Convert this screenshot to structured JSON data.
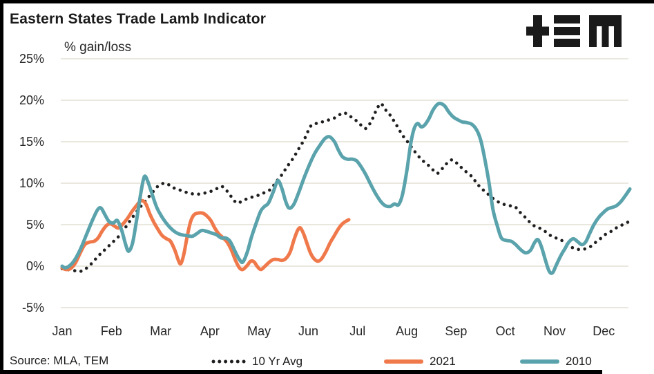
{
  "header": {
    "title": "Eastern States Trade Lamb Indicator",
    "logo_name": "TEM logo"
  },
  "footer": {
    "source": "Source: MLA, TEM"
  },
  "colors": {
    "ten_yr_avg": "#1f1f1f",
    "y2021": "#F0794B",
    "y2010": "#5AA3AC",
    "gridline": "#e9e7de",
    "frame_border": "#000000",
    "text": "#262626"
  },
  "chart_data": {
    "type": "line",
    "title": "Eastern States Trade Lamb Indicator",
    "y_axis_title": "% gain/loss",
    "x_unit": "months (0 = start of Jan, fractional = weeks within year)",
    "x_categories": [
      "Jan",
      "Feb",
      "Mar",
      "Apr",
      "May",
      "Jun",
      "Jul",
      "Aug",
      "Sep",
      "Oct",
      "Nov",
      "Dec"
    ],
    "y_ticks": [
      {
        "label": "25%",
        "value": 25
      },
      {
        "label": "20%",
        "value": 20
      },
      {
        "label": "15%",
        "value": 15
      },
      {
        "label": "10%",
        "value": 10
      },
      {
        "label": "5%",
        "value": 5
      },
      {
        "label": "0%",
        "value": 0
      },
      {
        "label": "-5%",
        "value": -5
      }
    ],
    "ylim": [
      -7.5,
      27
    ],
    "grid": "horizontal only",
    "legend_position": "bottom",
    "series": [
      {
        "name": "10 Yr Avg",
        "color": "#1f1f1f",
        "style": "dotted",
        "x": [
          0,
          0.21,
          0.39,
          0.56,
          0.73,
          0.87,
          1.01,
          1.15,
          1.29,
          1.43,
          1.57,
          1.71,
          1.85,
          1.96,
          2.1,
          2.24,
          2.38,
          2.52,
          2.67,
          2.81,
          2.95,
          3.06,
          3.16,
          3.25,
          3.37,
          3.48,
          3.56,
          3.67,
          3.79,
          3.9,
          4.01,
          4.12,
          4.24,
          4.35,
          4.46,
          4.57,
          4.69,
          4.8,
          4.91,
          5.05,
          5.16,
          5.29,
          5.4,
          5.51,
          5.62,
          5.72,
          5.84,
          5.96,
          6.07,
          6.17,
          6.28,
          6.38,
          6.47,
          6.56,
          6.66,
          6.77,
          6.91,
          7.04,
          7.15,
          7.29,
          7.43,
          7.55,
          7.63,
          7.74,
          7.85,
          7.94,
          8.05,
          8.18,
          8.32,
          8.42,
          8.51,
          8.61,
          8.72,
          8.84,
          8.95,
          9.07,
          9.19,
          9.28,
          9.37,
          9.45,
          9.55,
          9.65,
          9.76,
          9.87,
          9.97,
          10.08,
          10.2,
          10.31,
          10.42,
          10.53,
          10.63,
          10.74,
          10.84,
          10.95,
          11.05,
          11.15,
          11.25,
          11.35,
          11.45,
          11.53
        ],
        "y": [
          -0.3,
          -0.5,
          -0.6,
          0.1,
          1.2,
          2.0,
          2.8,
          3.6,
          4.7,
          5.9,
          7.0,
          8.0,
          9.0,
          9.7,
          10.0,
          9.5,
          9.2,
          8.9,
          8.7,
          8.7,
          8.9,
          9.1,
          9.4,
          9.6,
          8.9,
          8.0,
          7.6,
          7.9,
          8.2,
          8.4,
          8.6,
          8.9,
          9.3,
          10.2,
          11.0,
          12.0,
          13.0,
          14.1,
          15.2,
          16.9,
          17.2,
          17.4,
          17.6,
          17.8,
          18.2,
          18.5,
          18.1,
          17.6,
          17.0,
          16.6,
          17.5,
          18.8,
          19.6,
          18.9,
          18.2,
          17.2,
          15.8,
          14.8,
          13.9,
          12.9,
          12.2,
          11.5,
          11.2,
          11.9,
          12.6,
          12.8,
          12.2,
          11.5,
          10.8,
          10.0,
          9.4,
          8.9,
          8.3,
          7.8,
          7.5,
          7.3,
          7.2,
          6.6,
          6.1,
          5.6,
          5.0,
          4.7,
          4.4,
          3.9,
          3.5,
          3.3,
          2.9,
          2.4,
          2.1,
          2.0,
          2.1,
          2.4,
          2.9,
          3.4,
          3.9,
          4.2,
          4.6,
          4.9,
          5.2,
          5.4
        ]
      },
      {
        "name": "2021",
        "color": "#F0794B",
        "style": "solid",
        "x": [
          0,
          0.07,
          0.17,
          0.27,
          0.36,
          0.46,
          0.56,
          0.65,
          0.73,
          0.81,
          0.9,
          0.98,
          1.07,
          1.14,
          1.22,
          1.32,
          1.42,
          1.51,
          1.61,
          1.7,
          1.78,
          1.87,
          1.95,
          2.03,
          2.12,
          2.2,
          2.29,
          2.36,
          2.41,
          2.47,
          2.54,
          2.61,
          2.68,
          2.76,
          2.85,
          2.93,
          3.02,
          3.1,
          3.18,
          3.27,
          3.35,
          3.44,
          3.52,
          3.6,
          3.67,
          3.76,
          3.83,
          3.9,
          3.97,
          4.04,
          4.12,
          4.21,
          4.29,
          4.38,
          4.46,
          4.54,
          4.63,
          4.71,
          4.78,
          4.84,
          4.91,
          4.98,
          5.05,
          5.13,
          5.2,
          5.27,
          5.36,
          5.44,
          5.53,
          5.61,
          5.69,
          5.76,
          5.82
        ],
        "y": [
          -0.2,
          -0.4,
          -0.3,
          0.4,
          1.5,
          2.6,
          2.9,
          3.0,
          3.4,
          4.2,
          4.9,
          5.1,
          4.8,
          4.6,
          5.0,
          5.7,
          6.6,
          7.3,
          7.9,
          7.5,
          6.3,
          5.2,
          4.4,
          3.7,
          3.3,
          3.0,
          1.9,
          0.7,
          0.3,
          1.4,
          3.6,
          5.4,
          6.2,
          6.4,
          6.4,
          6.1,
          5.5,
          4.6,
          3.9,
          3.4,
          2.9,
          1.9,
          0.7,
          -0.2,
          -0.4,
          0.1,
          0.6,
          0.5,
          -0.1,
          -0.4,
          0.0,
          0.5,
          0.8,
          0.8,
          0.7,
          0.9,
          1.7,
          3.2,
          4.3,
          4.6,
          3.8,
          2.6,
          1.5,
          0.8,
          0.6,
          0.9,
          1.8,
          2.8,
          3.7,
          4.5,
          5.1,
          5.4,
          5.6
        ]
      },
      {
        "name": "2010",
        "color": "#5AA3AC",
        "style": "solid",
        "x": [
          0,
          0.07,
          0.18,
          0.28,
          0.39,
          0.5,
          0.62,
          0.72,
          0.79,
          0.87,
          0.95,
          1.04,
          1.12,
          1.21,
          1.29,
          1.35,
          1.43,
          1.51,
          1.6,
          1.67,
          1.74,
          1.82,
          1.92,
          2.02,
          2.1,
          2.2,
          2.3,
          2.41,
          2.52,
          2.64,
          2.73,
          2.83,
          2.93,
          3.03,
          3.13,
          3.23,
          3.32,
          3.41,
          3.51,
          3.6,
          3.67,
          3.76,
          3.84,
          3.93,
          4.03,
          4.11,
          4.19,
          4.29,
          4.38,
          4.46,
          4.54,
          4.61,
          4.7,
          4.8,
          4.91,
          5.02,
          5.13,
          5.25,
          5.34,
          5.43,
          5.53,
          5.61,
          5.69,
          5.79,
          5.89,
          5.98,
          6.07,
          6.17,
          6.27,
          6.37,
          6.47,
          6.56,
          6.66,
          6.75,
          6.83,
          6.91,
          7.0,
          7.08,
          7.15,
          7.22,
          7.29,
          7.36,
          7.45,
          7.53,
          7.62,
          7.69,
          7.77,
          7.85,
          7.94,
          8.02,
          8.12,
          8.22,
          8.32,
          8.42,
          8.5,
          8.58,
          8.67,
          8.75,
          8.84,
          8.92,
          9.02,
          9.12,
          9.21,
          9.31,
          9.41,
          9.51,
          9.59,
          9.66,
          9.73,
          9.82,
          9.89,
          9.96,
          10.04,
          10.13,
          10.21,
          10.29,
          10.38,
          10.46,
          10.55,
          10.63,
          10.71,
          10.8,
          10.9,
          10.98,
          11.08,
          11.18,
          11.26,
          11.35,
          11.45,
          11.53
        ],
        "y": [
          0.0,
          -0.2,
          0.2,
          1.0,
          2.3,
          3.9,
          5.6,
          6.8,
          7.0,
          6.2,
          5.4,
          5.2,
          5.5,
          4.3,
          2.6,
          1.8,
          2.8,
          5.5,
          8.9,
          10.8,
          10.2,
          8.8,
          7.1,
          6.0,
          5.3,
          4.6,
          4.1,
          3.8,
          3.7,
          3.6,
          3.9,
          4.3,
          4.2,
          4.0,
          3.8,
          3.4,
          3.4,
          3.0,
          1.8,
          0.8,
          0.5,
          1.7,
          3.4,
          5.0,
          6.6,
          7.2,
          7.6,
          9.0,
          10.3,
          9.4,
          7.8,
          7.0,
          7.4,
          8.8,
          10.6,
          12.2,
          13.6,
          14.7,
          15.4,
          15.6,
          15.0,
          14.0,
          13.2,
          12.9,
          12.9,
          12.7,
          12.0,
          11.0,
          9.8,
          8.7,
          7.8,
          7.3,
          7.2,
          7.5,
          7.4,
          8.6,
          11.5,
          14.8,
          16.6,
          17.2,
          16.8,
          17.0,
          17.8,
          18.8,
          19.5,
          19.6,
          19.3,
          18.6,
          18.0,
          17.7,
          17.4,
          17.3,
          17.1,
          16.4,
          15.2,
          13.0,
          10.0,
          6.8,
          4.8,
          3.4,
          3.1,
          3.0,
          2.6,
          2.0,
          1.6,
          1.9,
          2.8,
          3.2,
          2.4,
          0.6,
          -0.6,
          -0.8,
          0.2,
          1.3,
          2.1,
          2.9,
          3.3,
          3.0,
          2.6,
          2.9,
          3.9,
          5.0,
          5.9,
          6.4,
          6.9,
          7.1,
          7.3,
          7.8,
          8.6,
          9.3
        ]
      }
    ]
  }
}
